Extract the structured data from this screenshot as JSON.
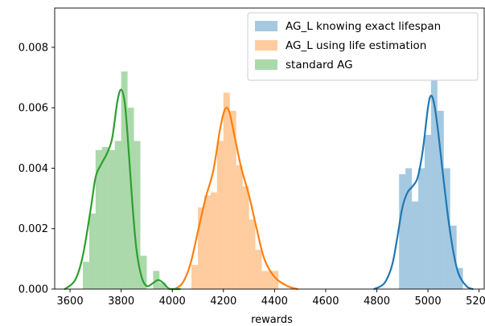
{
  "chart_data": {
    "type": "histogram",
    "title": "",
    "xlabel": "rewards",
    "ylabel": "",
    "xlim": [
      3540,
      5220
    ],
    "ylim": [
      0,
      0.0093
    ],
    "xticks": [
      3600,
      3800,
      4000,
      4200,
      4400,
      4600,
      4800,
      5000,
      5200
    ],
    "yticks": [
      0.0,
      0.002,
      0.004,
      0.006,
      0.008
    ],
    "ytick_labels": [
      "0.000",
      "0.002",
      "0.004",
      "0.006",
      "0.008"
    ],
    "grid": false,
    "legend_position": "top-right",
    "series": [
      {
        "name": "AG_L knowing exact lifespan",
        "color": "#1f77b4",
        "bins": [
          [
            4887,
            4912,
            0.0038
          ],
          [
            4912,
            4937,
            0.004
          ],
          [
            4937,
            4962,
            0.0029
          ],
          [
            4962,
            4987,
            0.004
          ],
          [
            4987,
            5012,
            0.0051
          ],
          [
            5012,
            5037,
            0.0069
          ],
          [
            5037,
            5062,
            0.0059
          ],
          [
            5062,
            5087,
            0.004
          ],
          [
            5087,
            5112,
            0.0021
          ],
          [
            5112,
            5137,
            0.0007
          ]
        ],
        "kde": [
          [
            4790,
            0.0
          ],
          [
            4830,
            0.0002
          ],
          [
            4860,
            0.0008
          ],
          [
            4880,
            0.0017
          ],
          [
            4900,
            0.0027
          ],
          [
            4920,
            0.0032
          ],
          [
            4940,
            0.0034
          ],
          [
            4960,
            0.0037
          ],
          [
            4980,
            0.0046
          ],
          [
            5000,
            0.006
          ],
          [
            5012,
            0.0064
          ],
          [
            5025,
            0.0061
          ],
          [
            5040,
            0.0052
          ],
          [
            5060,
            0.0037
          ],
          [
            5080,
            0.0023
          ],
          [
            5100,
            0.0012
          ],
          [
            5120,
            0.0005
          ],
          [
            5150,
            0.0001
          ],
          [
            5175,
            0.0
          ]
        ]
      },
      {
        "name": "AG_L using life estimation",
        "color": "#ff7f0e",
        "bins": [
          [
            4075,
            4100,
            0.0008
          ],
          [
            4100,
            4125,
            0.0027
          ],
          [
            4125,
            4150,
            0.0031
          ],
          [
            4150,
            4175,
            0.0032
          ],
          [
            4175,
            4200,
            0.0049
          ],
          [
            4200,
            4225,
            0.0065
          ],
          [
            4225,
            4250,
            0.0059
          ],
          [
            4250,
            4275,
            0.0041
          ],
          [
            4275,
            4300,
            0.0034
          ],
          [
            4300,
            4325,
            0.0023
          ],
          [
            4325,
            4350,
            0.0013
          ],
          [
            4350,
            4375,
            0.0006
          ],
          [
            4375,
            4400,
            0.0006
          ],
          [
            4400,
            4415,
            0.0006
          ]
        ],
        "kde": [
          [
            4010,
            0.0
          ],
          [
            4040,
            0.0002
          ],
          [
            4070,
            0.0008
          ],
          [
            4100,
            0.0019
          ],
          [
            4130,
            0.003
          ],
          [
            4160,
            0.0039
          ],
          [
            4185,
            0.0052
          ],
          [
            4200,
            0.0058
          ],
          [
            4212,
            0.006
          ],
          [
            4225,
            0.0058
          ],
          [
            4245,
            0.005
          ],
          [
            4270,
            0.004
          ],
          [
            4300,
            0.0031
          ],
          [
            4330,
            0.002
          ],
          [
            4360,
            0.001
          ],
          [
            4400,
            0.0004
          ],
          [
            4450,
            0.0001
          ],
          [
            4490,
            0.0
          ]
        ]
      },
      {
        "name": "standard AG",
        "color": "#2ca02c",
        "bins": [
          [
            3650,
            3675,
            0.0009
          ],
          [
            3675,
            3700,
            0.0025
          ],
          [
            3700,
            3725,
            0.0046
          ],
          [
            3725,
            3750,
            0.0047
          ],
          [
            3750,
            3775,
            0.0046
          ],
          [
            3775,
            3800,
            0.0049
          ],
          [
            3800,
            3825,
            0.0072
          ],
          [
            3825,
            3850,
            0.006
          ],
          [
            3850,
            3875,
            0.0049
          ],
          [
            3875,
            3900,
            0.0011
          ],
          [
            3900,
            3925,
            0.0
          ],
          [
            3925,
            3950,
            0.0006
          ],
          [
            3950,
            3975,
            0.0002
          ]
        ],
        "kde": [
          [
            3580,
            0.0
          ],
          [
            3620,
            0.0003
          ],
          [
            3650,
            0.0011
          ],
          [
            3680,
            0.0026
          ],
          [
            3700,
            0.0037
          ],
          [
            3720,
            0.0041
          ],
          [
            3745,
            0.0045
          ],
          [
            3765,
            0.005
          ],
          [
            3785,
            0.0062
          ],
          [
            3800,
            0.0066
          ],
          [
            3815,
            0.0061
          ],
          [
            3830,
            0.0045
          ],
          [
            3845,
            0.0027
          ],
          [
            3860,
            0.0013
          ],
          [
            3880,
            0.0004
          ],
          [
            3900,
            0.0001
          ],
          [
            3925,
            0.0002
          ],
          [
            3945,
            0.0003
          ],
          [
            3965,
            0.0002
          ],
          [
            3990,
            0.0
          ],
          [
            4030,
            0.0
          ]
        ]
      }
    ]
  }
}
